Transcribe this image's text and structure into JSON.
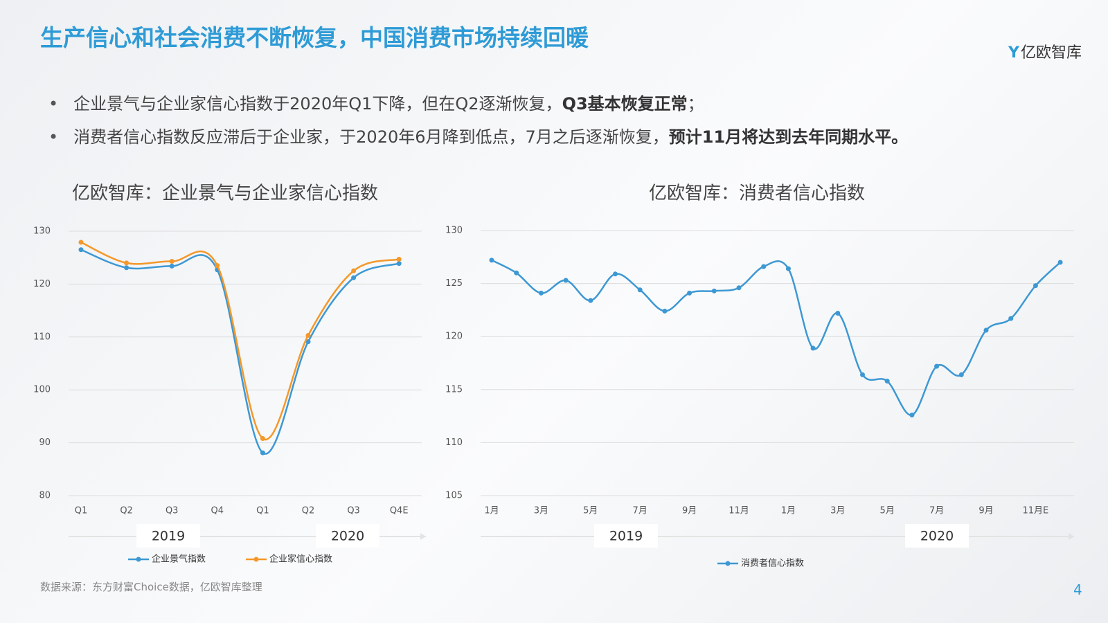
{
  "header": {
    "title": "生产信心和社会消费不断恢复，中国消费市场持续回暖",
    "logo": "亿欧智库"
  },
  "bullets": [
    [
      "企业景气与企业家信心指数于2020年Q1下降，但在Q2逐渐恢复，",
      "Q3基本恢复正常",
      "；"
    ],
    [
      "消费者信心指数反应滞后于企业家，于2020年6月降到低点，7月之后逐渐恢复，",
      "预计11月将达到去年同期水平。",
      ""
    ]
  ],
  "chart_data": [
    {
      "type": "line",
      "title": "亿欧智库：企业景气与企业家信心指数",
      "categories": [
        "Q1",
        "Q2",
        "Q3",
        "Q4",
        "Q1",
        "Q2",
        "Q3",
        "Q4E"
      ],
      "groups": [
        "2019",
        "2020"
      ],
      "series": [
        {
          "name": "企业景气指数",
          "color": "#3d98d3",
          "values": [
            126.5,
            123.1,
            123.4,
            122.7,
            88.1,
            109.1,
            121.2,
            123.9
          ]
        },
        {
          "name": "企业家信心指数",
          "color": "#f4982a",
          "values": [
            127.9,
            124.0,
            124.3,
            123.5,
            90.8,
            110.3,
            122.5,
            124.7
          ]
        }
      ],
      "ylim": [
        80,
        130
      ],
      "yticks": [
        80,
        90,
        100,
        110,
        120,
        130
      ],
      "grid": true,
      "legend": "bottom"
    },
    {
      "type": "line",
      "title": "亿欧智库：消费者信心指数",
      "categories": [
        "1月",
        null,
        "3月",
        null,
        "5月",
        null,
        "7月",
        null,
        "9月",
        null,
        "11月",
        null,
        "1月",
        null,
        "3月",
        null,
        "5月",
        null,
        "7月",
        null,
        "9月",
        null,
        "11月E",
        null
      ],
      "groups": [
        "2019",
        "2020"
      ],
      "series": [
        {
          "name": "消费者信心指数",
          "color": "#3d98d3",
          "values": [
            127.2,
            126.0,
            124.1,
            125.3,
            123.4,
            125.9,
            124.4,
            122.4,
            124.1,
            124.3,
            124.6,
            126.6,
            126.4,
            118.9,
            122.2,
            116.4,
            115.8,
            112.6,
            117.2,
            116.4,
            120.6,
            121.7,
            124.8,
            127.0
          ]
        }
      ],
      "ylim": [
        105,
        130
      ],
      "yticks": [
        105,
        110,
        115,
        120,
        125,
        130
      ],
      "grid": true,
      "legend": "bottom"
    }
  ],
  "footer": {
    "source": "数据来源：东方财富Choice数据，亿欧智库整理",
    "page": "4"
  }
}
